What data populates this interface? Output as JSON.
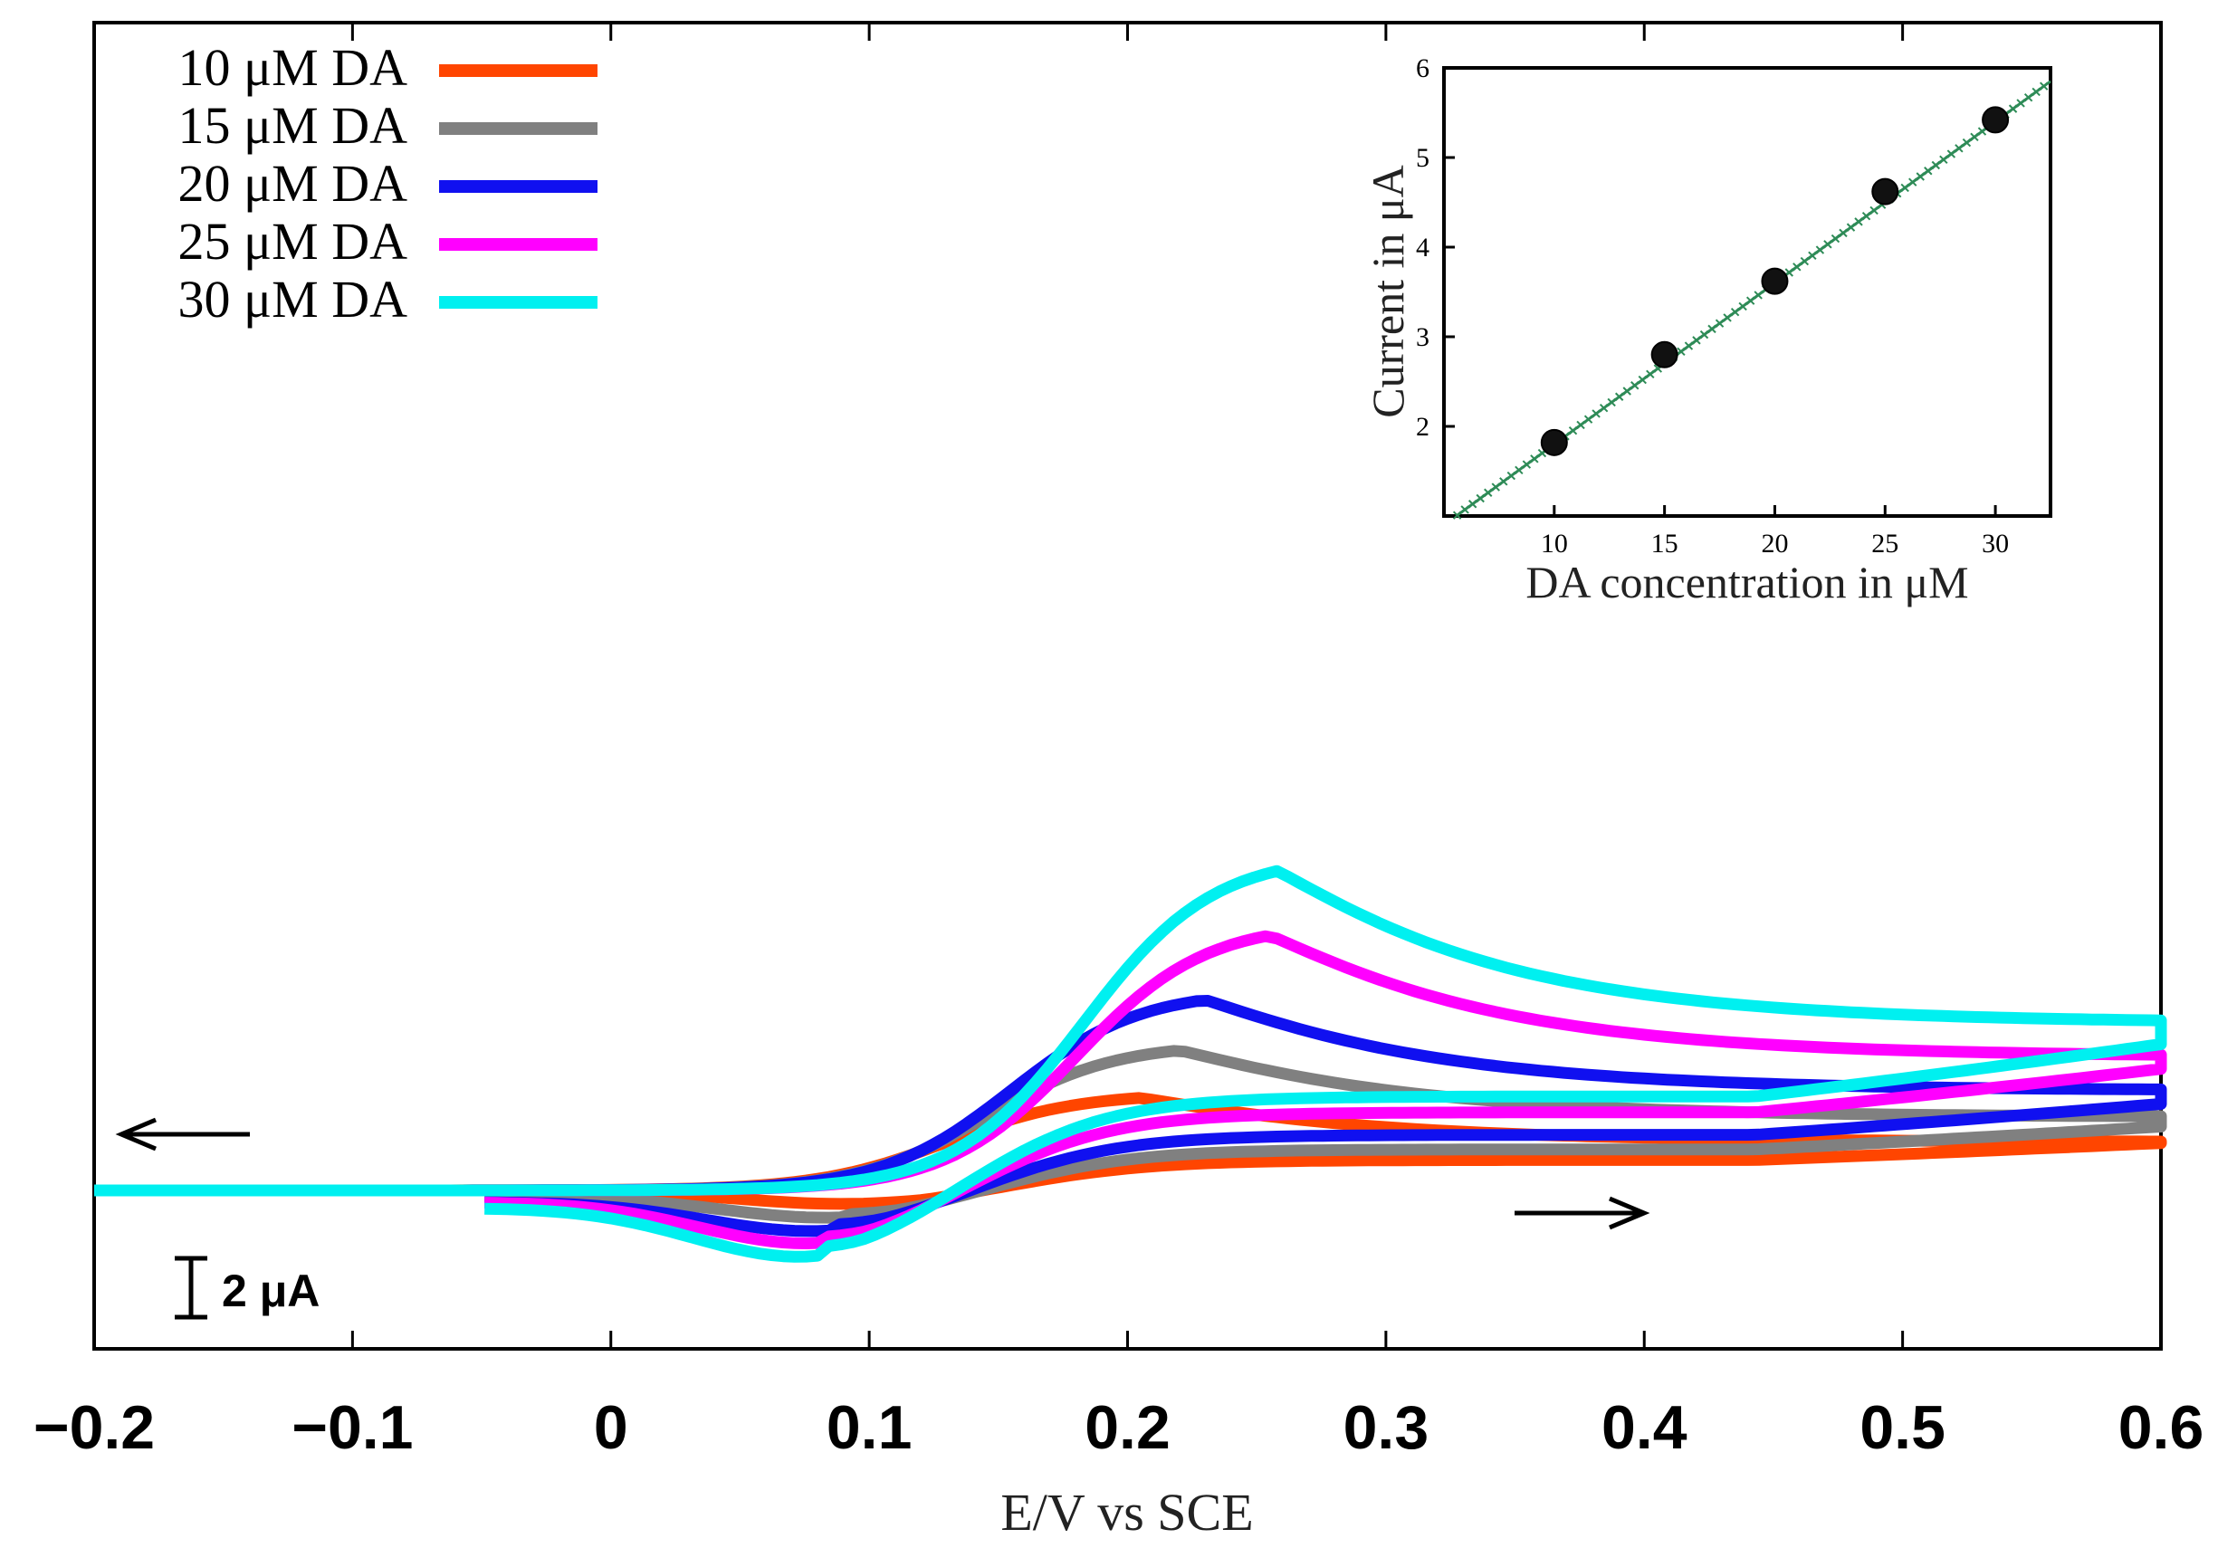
{
  "chart_data": [
    {
      "type": "line",
      "title": "",
      "xlabel": "E/V vs SCE",
      "ylabel": "",
      "xlim": [
        -0.2,
        0.6
      ],
      "xticks": [
        -0.2,
        -0.1,
        0,
        0.1,
        0.2,
        0.3,
        0.4,
        0.5,
        0.6
      ],
      "xtick_labels": [
        "−0.2",
        "−0.1",
        "0",
        "0.1",
        "0.2",
        "0.3",
        "0.4",
        "0.5",
        "0.6"
      ],
      "scale_bar_label": "2 μA",
      "scale_bar_uA": 2,
      "arrows": [
        {
          "direction": "left",
          "meaning": "reverse (cathodic) scan"
        },
        {
          "direction": "right",
          "meaning": "forward (anodic) scan"
        }
      ],
      "legend_position": "top-left",
      "series": [
        {
          "name": "10 μM DA",
          "color": "#ff4500",
          "anodic_peak_E": 0.205,
          "anodic_peak_uA": 3.3,
          "cathodic_peak_E": 0.095,
          "cathodic_peak_uA": -0.6,
          "vertex_current_uA": 2.3,
          "end_current_uA": 0.0,
          "baseline_uA": 0.0
        },
        {
          "name": "15 μM DA",
          "color": "#808080",
          "anodic_peak_E": 0.22,
          "anodic_peak_uA": 5.0,
          "cathodic_peak_E": 0.09,
          "cathodic_peak_uA": -1.0,
          "vertex_current_uA": 3.1,
          "end_current_uA": -0.2,
          "baseline_uA": 0.0
        },
        {
          "name": "20 μM DA",
          "color": "#1010f0",
          "anodic_peak_E": 0.23,
          "anodic_peak_uA": 6.8,
          "cathodic_peak_E": 0.085,
          "cathodic_peak_uA": -1.4,
          "vertex_current_uA": 4.2,
          "end_current_uA": -0.4,
          "baseline_uA": 0.0
        },
        {
          "name": "25 μM DA",
          "color": "#ff00ff",
          "anodic_peak_E": 0.255,
          "anodic_peak_uA": 9.1,
          "cathodic_peak_E": 0.082,
          "cathodic_peak_uA": -1.9,
          "vertex_current_uA": 5.9,
          "end_current_uA": -0.4,
          "baseline_uA": 0.0
        },
        {
          "name": "30 μM DA",
          "color": "#00f0f0",
          "anodic_peak_E": 0.258,
          "anodic_peak_uA": 11.4,
          "cathodic_peak_E": 0.08,
          "cathodic_peak_uA": -2.3,
          "vertex_current_uA": 7.1,
          "end_current_uA": -0.6,
          "baseline_uA": 0.0
        }
      ]
    },
    {
      "type": "scatter",
      "title": "",
      "xlabel": "DA concentration in μM",
      "ylabel": "Current in μA",
      "xlim": [
        5,
        32.5
      ],
      "ylim": [
        1,
        6
      ],
      "xticks": [
        10,
        15,
        20,
        25,
        30
      ],
      "yticks": [
        2,
        3,
        4,
        5,
        6
      ],
      "x": [
        10,
        15,
        20,
        25,
        30
      ],
      "y": [
        1.82,
        2.8,
        3.62,
        4.62,
        5.42
      ],
      "fit_line": {
        "slope": 0.18,
        "intercept": 0.0,
        "color": "#2e8b57"
      }
    }
  ]
}
